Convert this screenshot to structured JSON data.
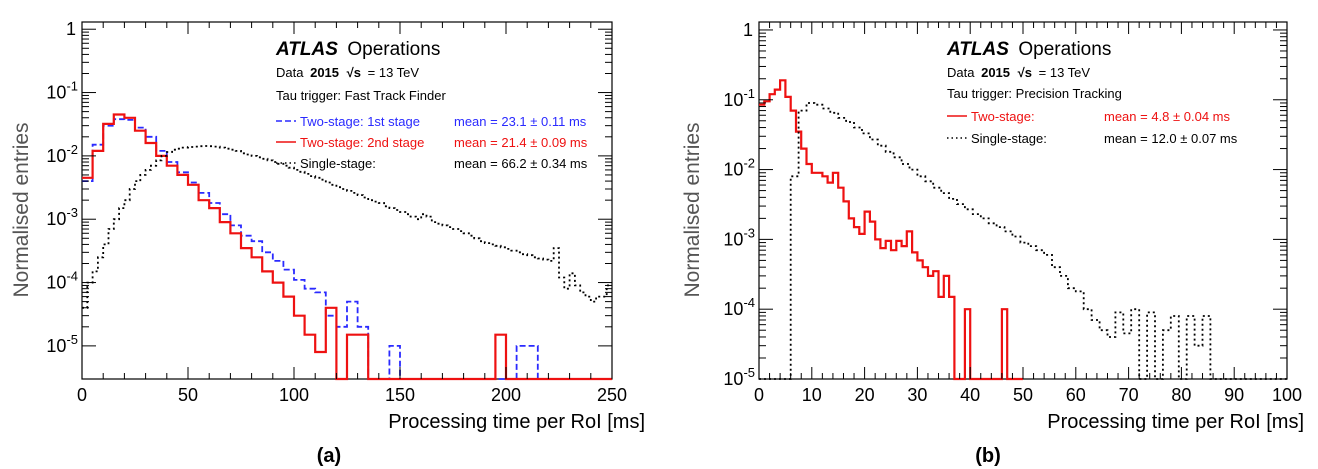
{
  "chart_data": [
    {
      "type": "line",
      "panel_label": "(a)",
      "experiment": "ATLAS",
      "experiment_suffix": "Operations",
      "data_line": {
        "prefix": "Data",
        "year": "2015",
        "sqrt_s": "√s",
        "energy": "= 13 TeV"
      },
      "trigger": "Tau trigger: Fast Track Finder",
      "xlabel": "Processing time per RoI [ms]",
      "ylabel": "Normalised entries",
      "xlim": [
        0,
        250
      ],
      "ylim": [
        3e-06,
        1.3
      ],
      "yscale": "log",
      "xticks": [
        "0",
        "50",
        "100",
        "150",
        "200",
        "250"
      ],
      "yticks": [
        {
          "base": "10",
          "exp": "-5"
        },
        {
          "base": "10",
          "exp": "-4"
        },
        {
          "base": "10",
          "exp": "-3"
        },
        {
          "base": "10",
          "exp": "-2"
        },
        {
          "base": "10",
          "exp": "-1"
        },
        {
          "base": "1",
          "exp": ""
        }
      ],
      "series": [
        {
          "name": "Two-stage: 1st stage",
          "mean_label": "mean = 23.1 ± 0.11 ms",
          "color": "#2a2aff",
          "dash": "dashed",
          "bin_width": 5,
          "x_start": 0,
          "values": [
            0.004,
            0.015,
            0.03,
            0.038,
            0.037,
            0.028,
            0.02,
            0.012,
            0.008,
            0.0055,
            0.0038,
            0.0026,
            0.0018,
            0.0012,
            0.0008,
            0.00055,
            0.00045,
            0.0003,
            0.00022,
            0.00016,
            0.00011,
            8e-05,
            7e-05,
            3e-05,
            2e-05,
            5e-05,
            2e-05,
            3e-06,
            3e-06,
            1e-05,
            3e-06,
            3e-06,
            3e-06,
            3e-06,
            3e-06,
            3e-06,
            3e-06,
            3e-06,
            3e-06,
            3e-06,
            3e-06,
            1e-05,
            1e-05,
            3e-06,
            3e-06,
            3e-06,
            3e-06,
            3e-06,
            3e-06,
            3e-06
          ]
        },
        {
          "name": "Two-stage: 2nd stage",
          "mean_label": "mean = 21.4 ± 0.09 ms",
          "color": "#ee1111",
          "dash": "solid",
          "bin_width": 5,
          "x_start": 0,
          "values": [
            0.0045,
            0.012,
            0.032,
            0.045,
            0.04,
            0.025,
            0.016,
            0.01,
            0.007,
            0.005,
            0.0035,
            0.002,
            0.0015,
            0.0009,
            0.0006,
            0.00035,
            0.00025,
            0.00015,
            0.0001,
            6e-05,
            3e-05,
            1.5e-05,
            8e-06,
            4e-05,
            3e-06,
            1.5e-05,
            1.5e-05,
            3e-06,
            3e-06,
            3e-06,
            3e-06,
            3e-06,
            3e-06,
            3e-06,
            3e-06,
            3e-06,
            3e-06,
            3e-06,
            3e-06,
            1.5e-05,
            3e-06,
            3e-06,
            3e-06,
            3e-06,
            3e-06,
            3e-06,
            3e-06,
            3e-06,
            3e-06,
            3e-06
          ]
        },
        {
          "name": "Single-stage:",
          "mean_label": "mean = 66.2 ± 0.34 ms",
          "color": "#000000",
          "dash": "dotted",
          "bin_width": 2.5,
          "x_start": 0,
          "values": [
            4e-05,
            0.0001,
            0.00015,
            0.00025,
            0.0004,
            0.0007,
            0.001,
            0.0015,
            0.002,
            0.003,
            0.004,
            0.005,
            0.006,
            0.007,
            0.0085,
            0.01,
            0.0115,
            0.0125,
            0.013,
            0.0135,
            0.0138,
            0.014,
            0.0142,
            0.0143,
            0.0142,
            0.014,
            0.0135,
            0.013,
            0.0125,
            0.012,
            0.011,
            0.0105,
            0.01,
            0.0095,
            0.009,
            0.0085,
            0.008,
            0.0075,
            0.007,
            0.0065,
            0.006,
            0.0056,
            0.0052,
            0.0048,
            0.0045,
            0.0042,
            0.0038,
            0.0035,
            0.0032,
            0.003,
            0.0028,
            0.0026,
            0.0024,
            0.0022,
            0.002,
            0.0019,
            0.0018,
            0.0016,
            0.0015,
            0.0014,
            0.0013,
            0.0012,
            0.0011,
            0.001,
            0.0012,
            0.0011,
            0.0009,
            0.00085,
            0.0008,
            0.00075,
            0.0007,
            0.00065,
            0.0006,
            0.00055,
            0.0005,
            0.00045,
            0.00042,
            0.0004,
            0.00038,
            0.00036,
            0.00034,
            0.00032,
            0.0003,
            0.00028,
            0.00027,
            0.00025,
            0.00024,
            0.00023,
            0.00022,
            0.00035,
            0.00012,
            8e-05,
            0.00014,
            9e-05,
            7e-05,
            6e-05,
            5e-05,
            6e-05,
            6e-05,
            9e-05
          ]
        }
      ]
    },
    {
      "type": "line",
      "panel_label": "(b)",
      "experiment": "ATLAS",
      "experiment_suffix": "Operations",
      "data_line": {
        "prefix": "Data",
        "year": "2015",
        "sqrt_s": "√s",
        "energy": "= 13 TeV"
      },
      "trigger": "Tau trigger: Precision Tracking",
      "xlabel": "Processing time per RoI [ms]",
      "ylabel": "Normalised entries",
      "xlim": [
        0,
        100
      ],
      "ylim": [
        1e-05,
        1.3
      ],
      "yscale": "log",
      "xticks": [
        "0",
        "10",
        "20",
        "30",
        "40",
        "50",
        "60",
        "70",
        "80",
        "90",
        "100"
      ],
      "yticks": [
        {
          "base": "10",
          "exp": "-5"
        },
        {
          "base": "10",
          "exp": "-4"
        },
        {
          "base": "10",
          "exp": "-3"
        },
        {
          "base": "10",
          "exp": "-2"
        },
        {
          "base": "10",
          "exp": "-1"
        },
        {
          "base": "1",
          "exp": ""
        }
      ],
      "series": [
        {
          "name": "Two-stage:",
          "mean_label": "mean = 4.8 ± 0.04 ms",
          "color": "#ee1111",
          "dash": "solid",
          "bin_width": 1,
          "x_start": 0,
          "values": [
            0.085,
            0.095,
            0.12,
            0.14,
            0.19,
            0.11,
            0.07,
            0.035,
            0.02,
            0.012,
            0.009,
            0.009,
            0.008,
            0.0065,
            0.009,
            0.0055,
            0.0035,
            0.002,
            0.0015,
            0.0012,
            0.0025,
            0.0018,
            0.001,
            0.00075,
            0.00095,
            0.0007,
            0.00095,
            0.0008,
            0.0013,
            0.00065,
            0.0005,
            0.0004,
            0.0003,
            0.00035,
            0.00015,
            0.0003,
            0.00015,
            1e-05,
            1e-05,
            0.0001,
            1e-05,
            1e-05,
            1e-05,
            1e-05,
            1e-05,
            1e-05,
            0.0001,
            1e-05,
            1e-05,
            1e-05
          ]
        },
        {
          "name": "Single-stage:",
          "mean_label": "mean = 12.0 ± 0.07 ms",
          "color": "#000000",
          "dash": "dotted",
          "bin_width": 1.5,
          "x_start": 0,
          "values": [
            1e-05,
            1e-05,
            1e-05,
            1e-05,
            0.008,
            0.07,
            0.09,
            0.085,
            0.075,
            0.065,
            0.055,
            0.048,
            0.04,
            0.033,
            0.027,
            0.022,
            0.018,
            0.015,
            0.012,
            0.01,
            0.008,
            0.0068,
            0.0055,
            0.0046,
            0.0038,
            0.0032,
            0.0027,
            0.0023,
            0.002,
            0.0017,
            0.0015,
            0.0013,
            0.0011,
            0.0009,
            0.0008,
            0.0007,
            0.0006,
            0.0004,
            0.0003,
            0.0002,
            0.00018,
            0.0001,
            7e-05,
            5e-05,
            4e-05,
            9e-05,
            4.5e-05,
            0.0001,
            1e-05,
            9e-05,
            1e-05,
            5e-05,
            8e-05,
            1e-05,
            8e-05,
            3e-05,
            8e-05,
            1e-05,
            1e-05,
            1e-05,
            1e-05,
            1e-05,
            1e-05,
            1e-05,
            1e-05,
            1e-05,
            1e-05
          ]
        }
      ]
    }
  ]
}
